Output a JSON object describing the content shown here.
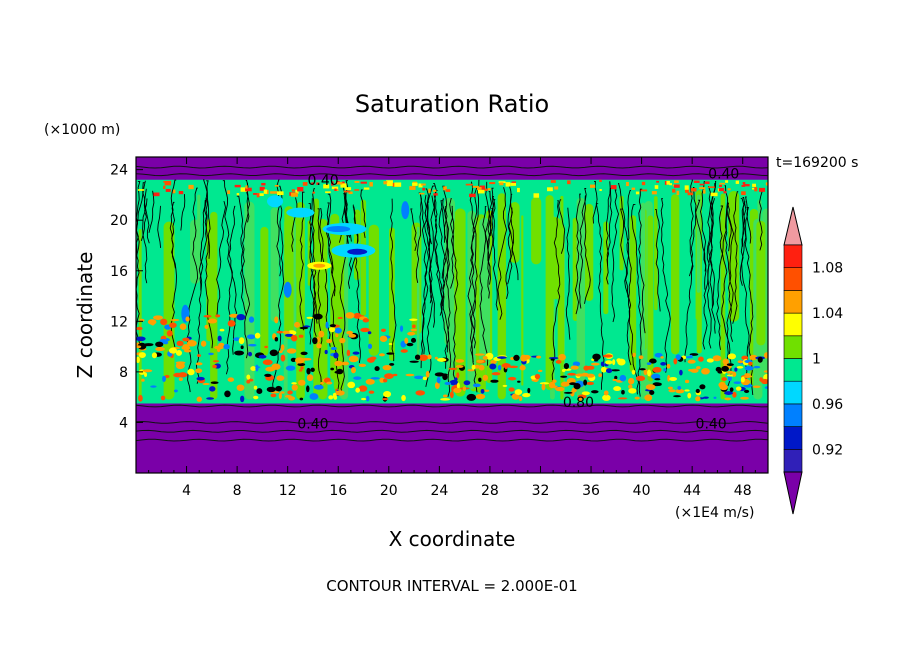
{
  "chart_data": {
    "type": "heatmap",
    "title": "Saturation Ratio",
    "xlabel": "X coordinate",
    "ylabel": "Z coordinate",
    "x_unit": "(×1E4 m/s)",
    "y_unit": "(×1000 m)",
    "time_label": "t=169200 s",
    "footer": "CONTOUR INTERVAL = 2.000E-01",
    "xlim": [
      0,
      50
    ],
    "ylim": [
      0,
      25
    ],
    "x_ticks": [
      4,
      8,
      12,
      16,
      20,
      24,
      28,
      32,
      36,
      40,
      44,
      48
    ],
    "y_ticks": [
      4,
      8,
      12,
      16,
      20,
      24
    ],
    "colorbar": {
      "levels": [
        0.9,
        0.92,
        0.94,
        0.96,
        0.98,
        1.0,
        1.02,
        1.04,
        1.06,
        1.08,
        1.1
      ],
      "tick_labels": [
        "0.92",
        "0.96",
        "1",
        "1.04",
        "1.08"
      ],
      "tick_values": [
        0.92,
        0.96,
        1.0,
        1.04,
        1.08
      ],
      "colors": [
        "#7a00a8",
        "#3020b8",
        "#0018c8",
        "#0080ff",
        "#00d8ff",
        "#00e890",
        "#70e000",
        "#ffff00",
        "#ffa000",
        "#ff5000",
        "#ff2010",
        "#f09aa0"
      ]
    },
    "regions": [
      {
        "z_from": 0,
        "z_to": 5.5,
        "value": "< 0.90"
      },
      {
        "z_from": 5.5,
        "z_to": 23.2,
        "value": "0.98 – 1.02"
      },
      {
        "z_from": 23.2,
        "z_to": 25,
        "value": "< 0.90"
      }
    ],
    "contour_labels": [
      {
        "x": 14.0,
        "z": 3.9,
        "text": "0.40"
      },
      {
        "x": 45.5,
        "z": 3.9,
        "text": "0.40"
      },
      {
        "x": 35.0,
        "z": 5.6,
        "text": "0.80"
      },
      {
        "x": 14.8,
        "z": 23.2,
        "text": "0.40"
      },
      {
        "x": 46.5,
        "z": 23.7,
        "text": "0.40"
      }
    ]
  }
}
